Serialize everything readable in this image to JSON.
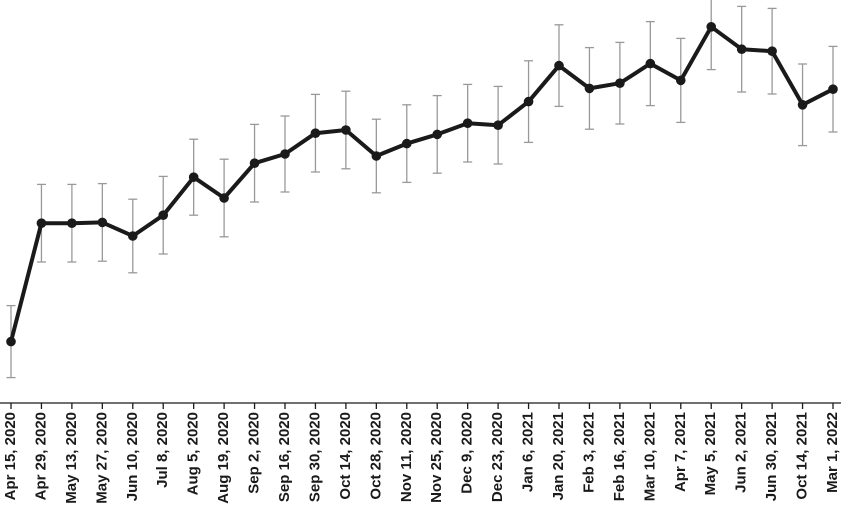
{
  "chart_data": {
    "type": "line",
    "title": "",
    "xlabel": "",
    "ylabel": "",
    "ylim": [
      0,
      10
    ],
    "grid": false,
    "legend": "none",
    "colors": {
      "line": "#1a1a1a",
      "error_bar": "#999999",
      "axis": "#1a1a1a"
    },
    "categories": [
      "Apr 15, 2020",
      "Apr 29, 2020",
      "May 13, 2020",
      "May 27, 2020",
      "Jun 10, 2020",
      "Jul 8, 2020",
      "Aug 5, 2020",
      "Aug 19, 2020",
      "Sep 2, 2020",
      "Sep 16, 2020",
      "Sep 30, 2020",
      "Oct 14, 2020",
      "Oct 28, 2020",
      "Nov 11, 2020",
      "Nov 25, 2020",
      "Dec 9, 2020",
      "Dec 23, 2020",
      "Jan 6, 2021",
      "Jan 20, 2021",
      "Feb 3, 2021",
      "Feb 16, 2021",
      "Mar 10, 2021",
      "Apr 7, 2021",
      "May 5, 2021",
      "Jun 2, 2021",
      "Jun 30, 2021",
      "Oct 14, 2021",
      "Mar 1, 2022"
    ],
    "series": [
      {
        "values": [
          1.46,
          4.42,
          4.42,
          4.44,
          4.1,
          4.62,
          5.57,
          5.05,
          5.92,
          6.15,
          6.67,
          6.75,
          6.1,
          6.41,
          6.64,
          6.92,
          6.87,
          7.46,
          8.36,
          7.79,
          7.92,
          8.41,
          7.99,
          9.33,
          8.77,
          8.72,
          7.38,
          7.77
        ],
        "error": [
          0.9,
          0.97,
          0.97,
          0.97,
          0.92,
          0.97,
          0.95,
          0.97,
          0.97,
          0.95,
          0.97,
          0.97,
          0.92,
          0.97,
          0.97,
          0.97,
          0.97,
          1.02,
          1.02,
          1.02,
          1.02,
          1.05,
          1.05,
          1.07,
          1.07,
          1.07,
          1.02,
          1.07
        ]
      }
    ]
  }
}
